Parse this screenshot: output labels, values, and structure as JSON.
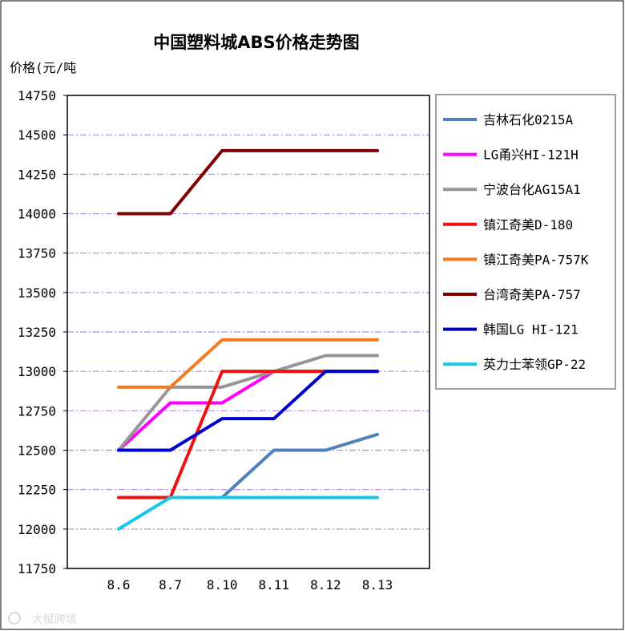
{
  "chart_data": {
    "type": "line",
    "title": "中国塑料城ABS价格走势图",
    "ylabel": "价格(元/吨",
    "xlabel": "",
    "ylim": [
      11750,
      14750
    ],
    "ytick_step": 250,
    "categories": [
      "8.6",
      "8.7",
      "8.10",
      "8.11",
      "8.12",
      "8.13"
    ],
    "grid": "horizontal dash-dot, light purple",
    "legend_position": "right",
    "series": [
      {
        "name": "吉林石化0215A",
        "color": "#4f81bd",
        "values": [
          null,
          12200,
          12200,
          12500,
          12500,
          12600
        ]
      },
      {
        "name": "LG甬兴HI-121H",
        "color": "#ff00ff",
        "values": [
          12500,
          12800,
          12800,
          13000,
          13000,
          13000
        ]
      },
      {
        "name": "宁波台化AG15A1",
        "color": "#969696",
        "values": [
          12500,
          12900,
          12900,
          13000,
          13100,
          13100
        ]
      },
      {
        "name": "镇江奇美D-180",
        "color": "#ee1111",
        "values": [
          12200,
          12200,
          13000,
          13000,
          13000,
          13000
        ]
      },
      {
        "name": "镇江奇美PA-757K",
        "color": "#f47b20",
        "values": [
          12900,
          12900,
          13200,
          13200,
          13200,
          13200
        ]
      },
      {
        "name": "台湾奇美PA-757",
        "color": "#800000",
        "values": [
          14000,
          14000,
          14400,
          14400,
          14400,
          14400
        ]
      },
      {
        "name": "韩国LG HI-121",
        "color": "#0000cc",
        "values": [
          12500,
          12500,
          12700,
          12700,
          13000,
          13000
        ]
      },
      {
        "name": "英力士苯领GP-22",
        "color": "#17c7e8",
        "values": [
          12000,
          12200,
          12200,
          12200,
          12200,
          12200
        ]
      }
    ]
  },
  "watermark": "大赋跨境"
}
